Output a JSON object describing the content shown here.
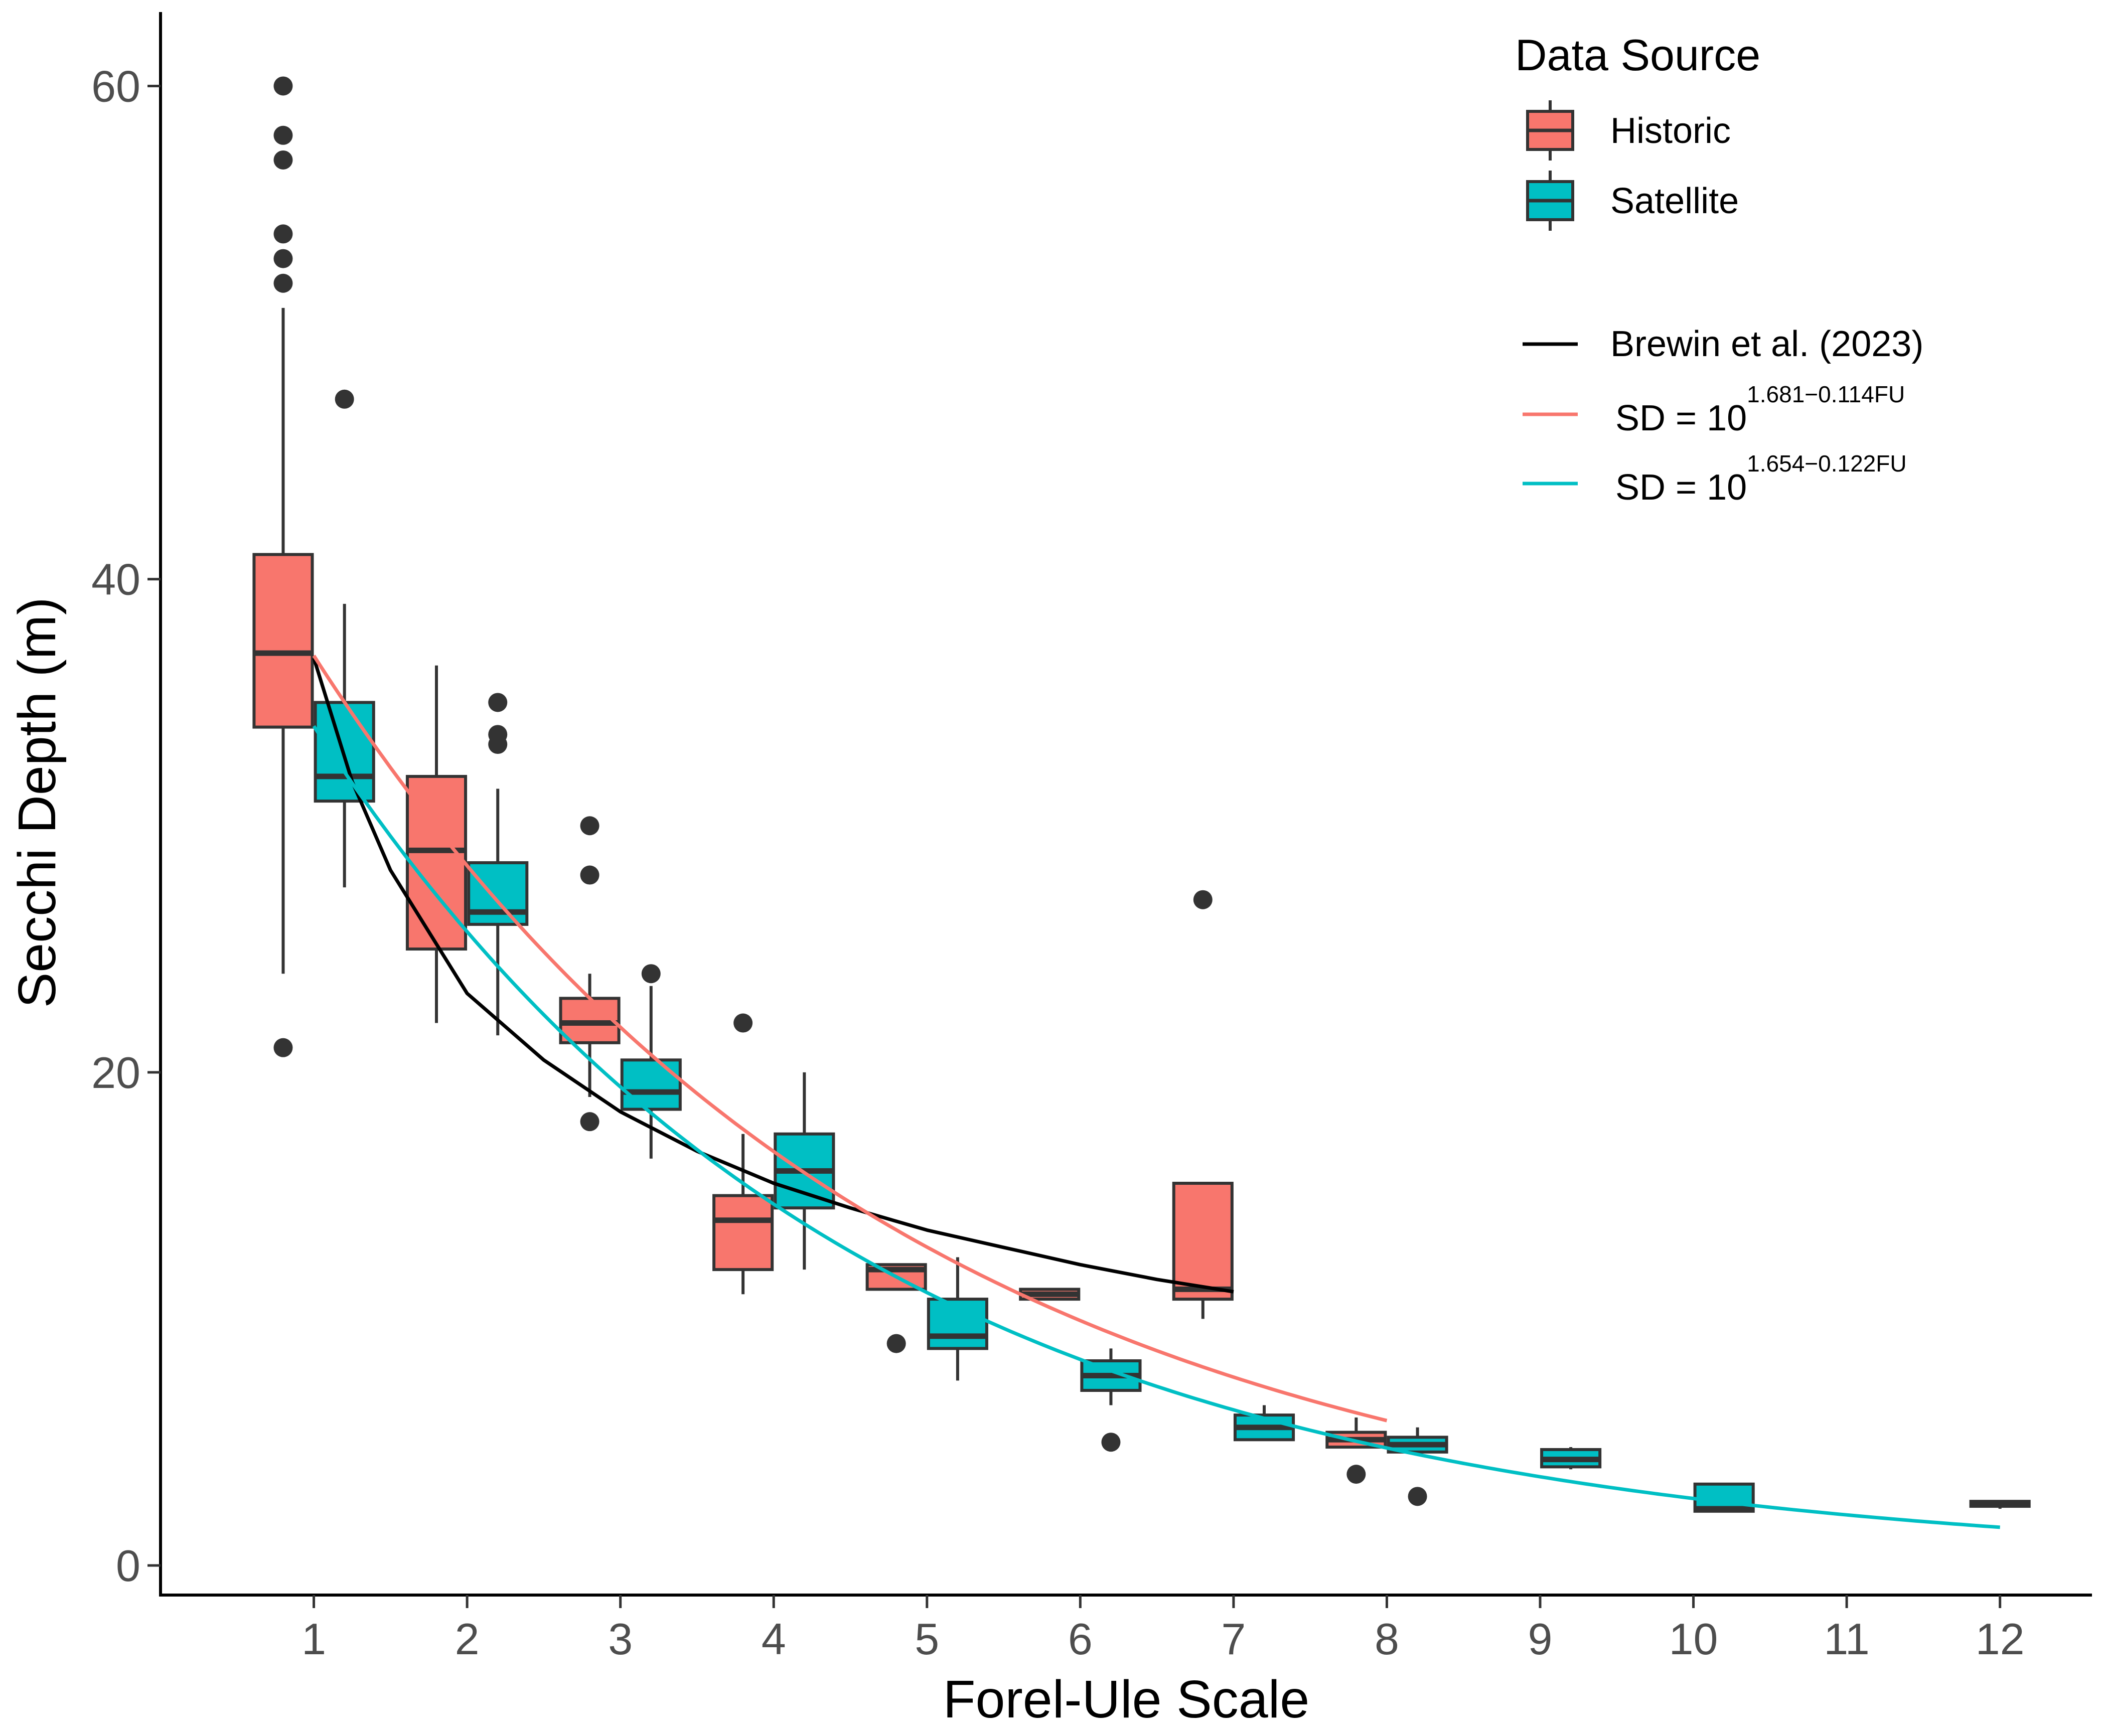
{
  "chart_data": {
    "type": "boxplot",
    "title": "",
    "xlabel": "Forel-Ule Scale",
    "ylabel": "Secchi Depth (m)",
    "xlim": [
      0.0,
      12.6
    ],
    "ylim": [
      -1.2,
      63
    ],
    "x_ticks": [
      1,
      2,
      3,
      4,
      5,
      6,
      7,
      8,
      9,
      10,
      11,
      12
    ],
    "y_ticks": [
      0,
      20,
      40,
      60
    ],
    "grid": false,
    "legend_title": "Data Source",
    "legend_position": "top-right",
    "series": [
      {
        "name": "Historic",
        "color": "#F8766D",
        "boxes": [
          {
            "fu": 1,
            "whisker_low": 24,
            "q1": 34,
            "median": 37,
            "q3": 41,
            "whisker_high": 51,
            "outliers": [
              21,
              52,
              53,
              54,
              57,
              58,
              60
            ]
          },
          {
            "fu": 2,
            "whisker_low": 22,
            "q1": 25,
            "median": 29,
            "q3": 32,
            "whisker_high": 36.5,
            "outliers": []
          },
          {
            "fu": 3,
            "whisker_low": 19,
            "q1": 21.2,
            "median": 22,
            "q3": 23,
            "whisker_high": 24,
            "outliers": [
              18,
              28,
              30
            ]
          },
          {
            "fu": 4,
            "whisker_low": 11,
            "q1": 12,
            "median": 14,
            "q3": 15,
            "whisker_high": 17.5,
            "outliers": [
              22
            ]
          },
          {
            "fu": 5,
            "whisker_low": 11.2,
            "q1": 11.2,
            "median": 12,
            "q3": 12.2,
            "whisker_high": 12.2,
            "outliers": [
              9
            ]
          },
          {
            "fu": 6,
            "whisker_low": 10.8,
            "q1": 10.8,
            "median": 11,
            "q3": 11.2,
            "whisker_high": 11.2,
            "outliers": []
          },
          {
            "fu": 7,
            "whisker_low": 10,
            "q1": 10.8,
            "median": 11.2,
            "q3": 15.5,
            "whisker_high": 15.5,
            "outliers": [
              27
            ]
          },
          {
            "fu": 8,
            "whisker_low": 4.8,
            "q1": 4.8,
            "median": 5.1,
            "q3": 5.4,
            "whisker_high": 6,
            "outliers": [
              3.7
            ]
          }
        ]
      },
      {
        "name": "Satellite",
        "color": "#00BFC4",
        "boxes": [
          {
            "fu": 1,
            "whisker_low": 27.5,
            "q1": 31,
            "median": 32,
            "q3": 35,
            "whisker_high": 39,
            "outliers": [
              47.3
            ]
          },
          {
            "fu": 2,
            "whisker_low": 21.5,
            "q1": 26,
            "median": 26.5,
            "q3": 28.5,
            "whisker_high": 31.5,
            "outliers": [
              33.3,
              33.7,
              35
            ]
          },
          {
            "fu": 3,
            "whisker_low": 16.5,
            "q1": 18.5,
            "median": 19.2,
            "q3": 20.5,
            "whisker_high": 23.5,
            "outliers": [
              24
            ]
          },
          {
            "fu": 4,
            "whisker_low": 12,
            "q1": 14.5,
            "median": 16,
            "q3": 17.5,
            "whisker_high": 20,
            "outliers": []
          },
          {
            "fu": 5,
            "whisker_low": 7.5,
            "q1": 8.8,
            "median": 9.3,
            "q3": 10.8,
            "whisker_high": 12.5,
            "outliers": []
          },
          {
            "fu": 6,
            "whisker_low": 6.5,
            "q1": 7.1,
            "median": 7.7,
            "q3": 8.3,
            "whisker_high": 8.8,
            "outliers": [
              5
            ]
          },
          {
            "fu": 7,
            "whisker_low": 5.1,
            "q1": 5.1,
            "median": 5.6,
            "q3": 6.1,
            "whisker_high": 6.5,
            "outliers": []
          },
          {
            "fu": 8,
            "whisker_low": 4.6,
            "q1": 4.6,
            "median": 4.9,
            "q3": 5.2,
            "whisker_high": 5.6,
            "outliers": [
              2.8
            ]
          },
          {
            "fu": 9,
            "whisker_low": 3.9,
            "q1": 4,
            "median": 4.3,
            "q3": 4.7,
            "whisker_high": 4.8,
            "outliers": []
          },
          {
            "fu": 10,
            "whisker_low": 2.2,
            "q1": 2.2,
            "median": 2.3,
            "q3": 3.3,
            "whisker_high": 3.3,
            "outliers": []
          }
        ]
      }
    ],
    "extra_boxes": [
      {
        "fu": 12,
        "whisker_low": 2.3,
        "q1": 2.4,
        "median": 2.5,
        "q3": 2.6,
        "whisker_high": 2.6,
        "color": "#F8766D",
        "outliers": []
      }
    ],
    "curves": [
      {
        "name": "Brewin et al. (2023)",
        "color": "#000000",
        "x_points": [
          1,
          1.25,
          1.5,
          2,
          2.5,
          3,
          3.5,
          4,
          4.5,
          5,
          5.5,
          6,
          6.5,
          7
        ],
        "y_points": [
          36.8,
          31.8,
          28.2,
          23.2,
          20.5,
          18.4,
          16.8,
          15.5,
          14.5,
          13.6,
          12.9,
          12.2,
          11.6,
          11.1
        ]
      },
      {
        "name": "SD = 10^(1.681-0.114FU)",
        "color": "#F8766D",
        "x_from": 1,
        "x_to": 8,
        "a": 1.681,
        "b": 0.114
      },
      {
        "name": "SD = 10^(1.654-0.122FU)",
        "color": "#00BFC4",
        "x_from": 1,
        "x_to": 12,
        "a": 1.654,
        "b": 0.122
      }
    ]
  },
  "legend": {
    "title": "Data Source",
    "fill_items": [
      "Historic",
      "Satellite"
    ],
    "line_items": [
      {
        "label": "Brewin et al. (2023)"
      },
      {
        "prefix": "SD = 10",
        "exponent": "1.681−0.114FU"
      },
      {
        "prefix": "SD = 10",
        "exponent": "1.654−0.122FU"
      }
    ]
  },
  "colors": {
    "historic": "#F8766D",
    "satellite": "#00BFC4",
    "brewin": "#000000",
    "historic_fit": "#F8766D",
    "satellite_fit": "#00BFC4",
    "outline": "#333333",
    "outlier": "#333333"
  }
}
